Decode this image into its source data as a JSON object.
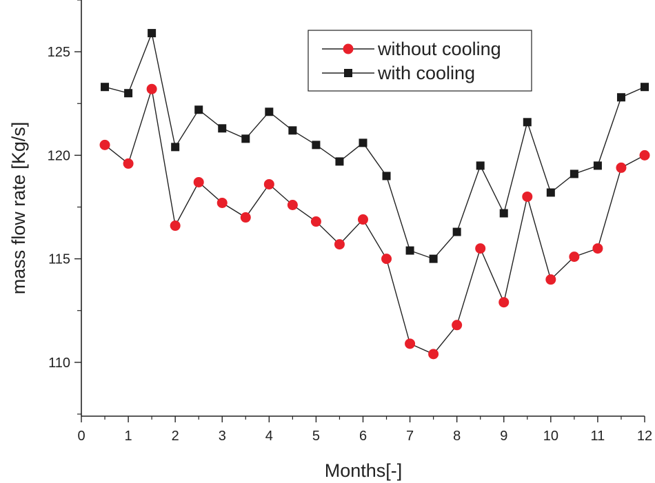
{
  "chart_data": {
    "type": "line",
    "title": "",
    "xlabel": "Months[-]",
    "ylabel": "mass flow rate [Kg/s]",
    "xlim": [
      0,
      12
    ],
    "ylim": [
      107.4,
      127.5
    ],
    "x_major_ticks": [
      0,
      1,
      2,
      3,
      4,
      5,
      6,
      7,
      8,
      9,
      10,
      11,
      12
    ],
    "x_tick_labels": [
      "0",
      "1",
      "2",
      "3",
      "4",
      "5",
      "6",
      "7",
      "8",
      "9",
      "10",
      "11",
      "12"
    ],
    "y_major_ticks": [
      110,
      115,
      120,
      125
    ],
    "y_tick_labels": [
      "110",
      "115",
      "120",
      "125"
    ],
    "legend_position": "top-right",
    "x": [
      0.5,
      1,
      1.5,
      2,
      2.5,
      3,
      3.5,
      4,
      4.5,
      5,
      5.5,
      6,
      6.5,
      7,
      7.5,
      8,
      8.5,
      9,
      9.5,
      10,
      10.5,
      11,
      11.5,
      12
    ],
    "series": [
      {
        "name": "without cooling",
        "marker": "circle",
        "color": "#e8202a",
        "values": [
          120.5,
          119.6,
          123.2,
          116.6,
          118.7,
          117.7,
          117.0,
          118.6,
          117.6,
          116.8,
          115.7,
          116.9,
          115.0,
          110.9,
          110.4,
          111.8,
          115.5,
          112.9,
          118.0,
          114.0,
          115.1,
          115.5,
          119.4,
          120.0
        ]
      },
      {
        "name": "with cooling",
        "marker": "square",
        "color": "#1a1a1a",
        "values": [
          123.3,
          123.0,
          125.9,
          120.4,
          122.2,
          121.3,
          120.8,
          122.1,
          121.2,
          120.5,
          119.7,
          120.6,
          119.0,
          115.4,
          115.0,
          116.3,
          119.5,
          117.2,
          121.6,
          118.2,
          119.1,
          119.5,
          122.8,
          123.3
        ]
      }
    ]
  }
}
